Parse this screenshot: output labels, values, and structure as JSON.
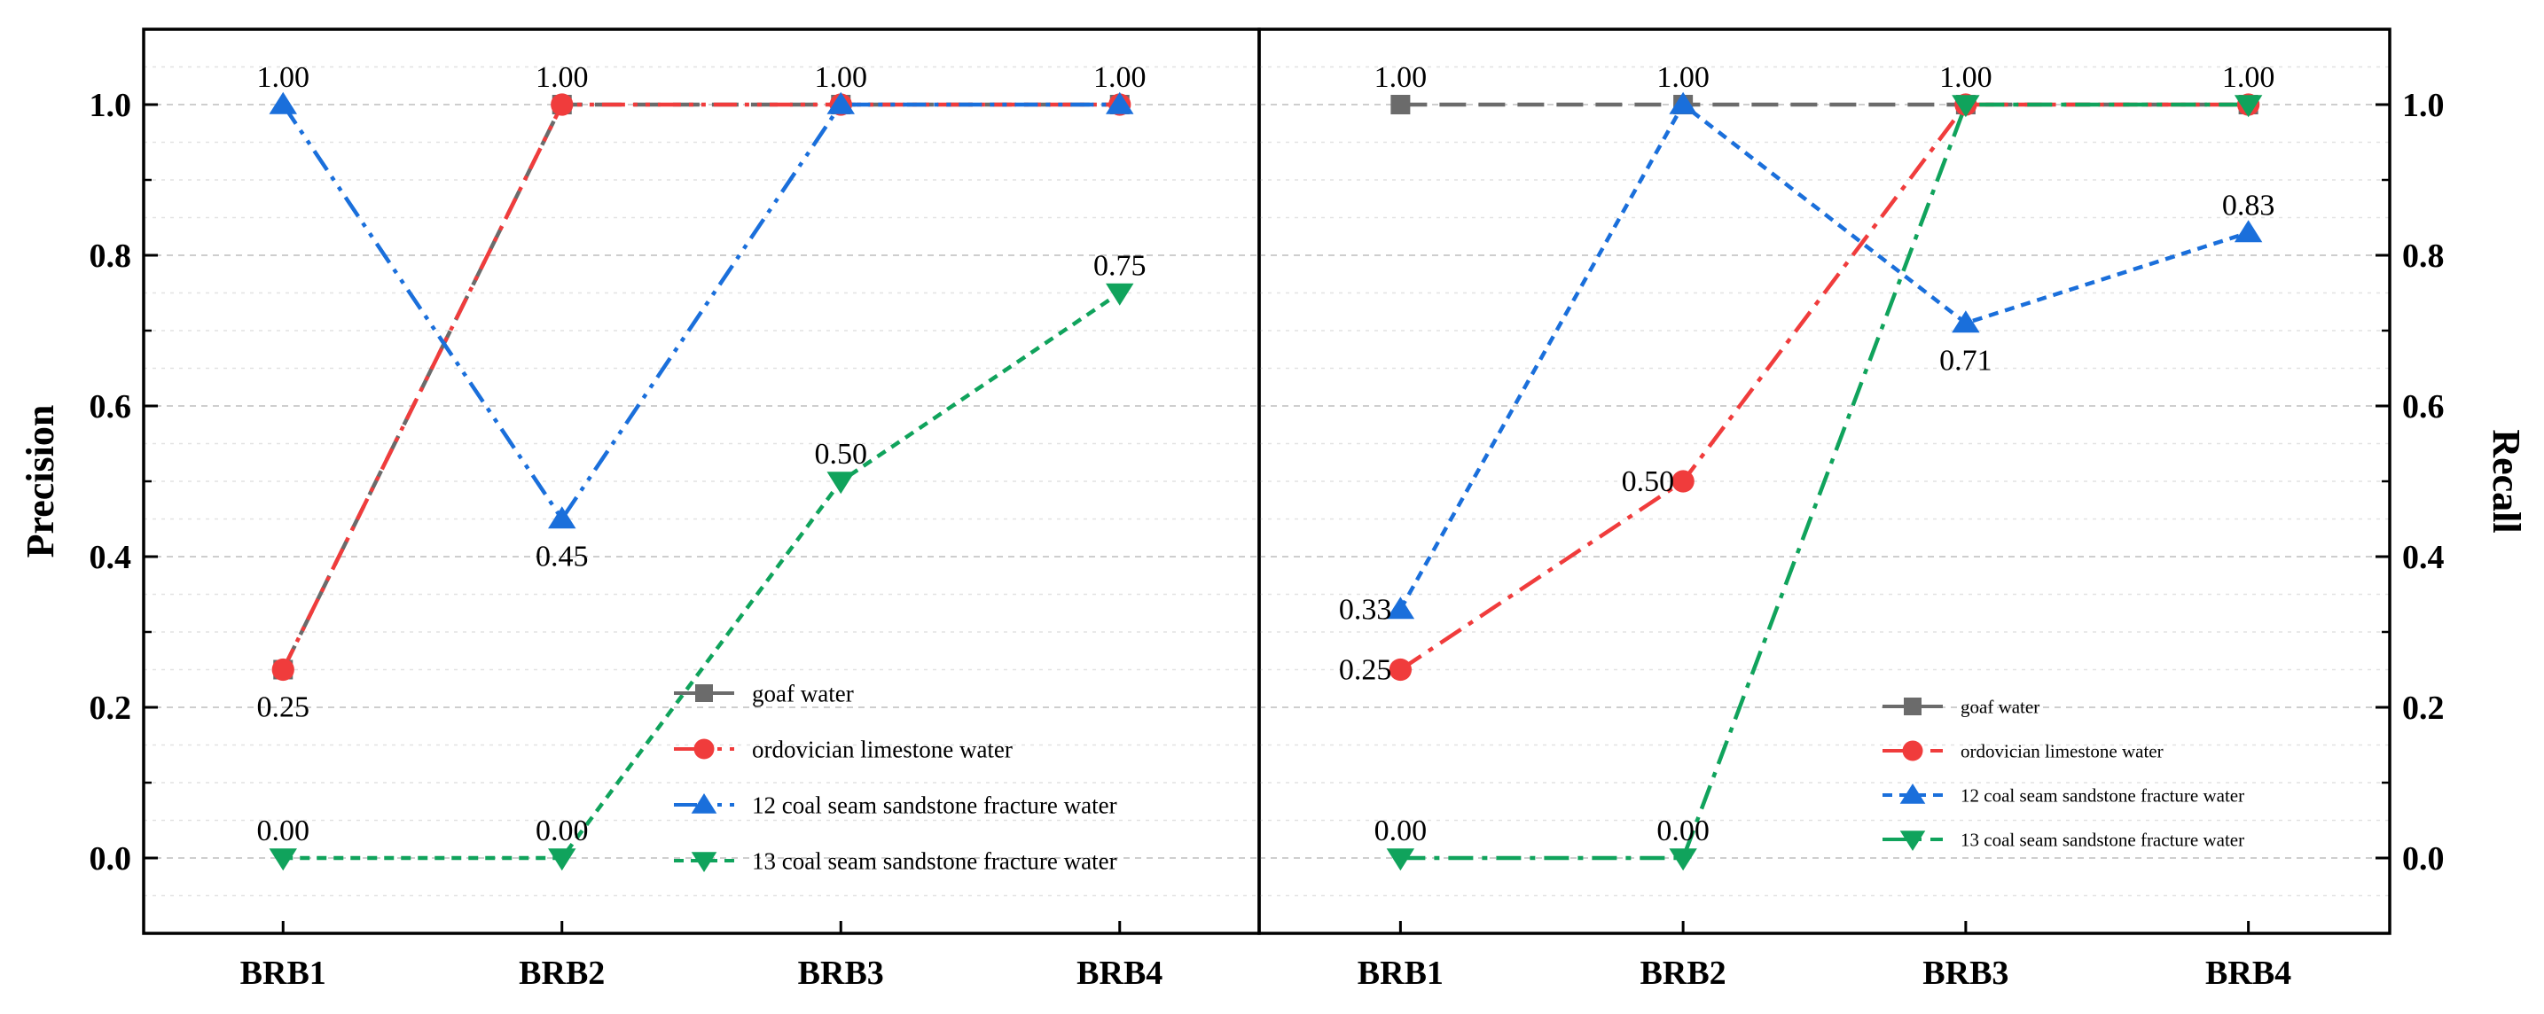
{
  "chart_data": [
    {
      "type": "line",
      "panel": "left",
      "ylabel": "Precision",
      "ylabel_side": "left",
      "categories": [
        "BRB1",
        "BRB2",
        "BRB3",
        "BRB4"
      ],
      "ylim": [
        -0.1,
        1.1
      ],
      "yticks": [
        "0.0",
        "0.2",
        "0.4",
        "0.6",
        "0.8",
        "1.0"
      ],
      "grid": true,
      "legend_position": "bottom-right",
      "series": [
        {
          "name": "goaf water",
          "values": [
            0.25,
            1.0,
            1.0,
            1.0
          ],
          "color": "#6b6b6b",
          "marker": "square",
          "dash": "dashed"
        },
        {
          "name": "ordovician limestone water",
          "values": [
            0.25,
            1.0,
            1.0,
            1.0
          ],
          "color": "#f03c3c",
          "marker": "circle",
          "dash": "dash-dot-dot"
        },
        {
          "name": "12 coal seam sandstone fracture water",
          "values": [
            1.0,
            0.45,
            1.0,
            1.0
          ],
          "color": "#1a6fdb",
          "marker": "triangle-up",
          "dash": "dash-dot-dot"
        },
        {
          "name": "13 coal seam sandstone fracture water",
          "values": [
            0.0,
            0.0,
            0.5,
            0.75
          ],
          "color": "#10a35c",
          "marker": "triangle-down",
          "dash": "short-dash"
        }
      ],
      "annotations": [
        {
          "text": "1.00",
          "cat": 0,
          "value": 1.0,
          "pos": "above"
        },
        {
          "text": "1.00",
          "cat": 1,
          "value": 1.0,
          "pos": "above"
        },
        {
          "text": "1.00",
          "cat": 2,
          "value": 1.0,
          "pos": "above"
        },
        {
          "text": "1.00",
          "cat": 3,
          "value": 1.0,
          "pos": "above"
        },
        {
          "text": "0.25",
          "cat": 0,
          "value": 0.25,
          "pos": "below"
        },
        {
          "text": "0.45",
          "cat": 1,
          "value": 0.45,
          "pos": "below"
        },
        {
          "text": "0.50",
          "cat": 2,
          "value": 0.5,
          "pos": "above"
        },
        {
          "text": "0.75",
          "cat": 3,
          "value": 0.75,
          "pos": "above"
        },
        {
          "text": "0.00",
          "cat": 0,
          "value": 0.0,
          "pos": "above"
        },
        {
          "text": "0.00",
          "cat": 1,
          "value": 0.0,
          "pos": "above"
        }
      ]
    },
    {
      "type": "line",
      "panel": "right",
      "ylabel": "Recall",
      "ylabel_side": "right",
      "categories": [
        "BRB1",
        "BRB2",
        "BRB3",
        "BRB4"
      ],
      "ylim": [
        -0.1,
        1.1
      ],
      "yticks": [
        "0.0",
        "0.2",
        "0.4",
        "0.6",
        "0.8",
        "1.0"
      ],
      "grid": true,
      "legend_position": "bottom-right",
      "series": [
        {
          "name": "goaf water",
          "values": [
            1.0,
            1.0,
            1.0,
            1.0
          ],
          "color": "#6b6b6b",
          "marker": "square",
          "dash": "dashed"
        },
        {
          "name": "ordovician limestone water",
          "values": [
            0.25,
            0.5,
            1.0,
            1.0
          ],
          "color": "#f03c3c",
          "marker": "circle",
          "dash": "dash-dot"
        },
        {
          "name": "12 coal seam sandstone fracture water",
          "values": [
            0.33,
            1.0,
            0.71,
            0.83
          ],
          "color": "#1a6fdb",
          "marker": "triangle-up",
          "dash": "short-dash"
        },
        {
          "name": "13 coal seam sandstone fracture water",
          "values": [
            0.0,
            0.0,
            1.0,
            1.0
          ],
          "color": "#10a35c",
          "marker": "triangle-down",
          "dash": "dash-dot"
        }
      ],
      "annotations": [
        {
          "text": "1.00",
          "cat": 0,
          "value": 1.0,
          "pos": "above"
        },
        {
          "text": "1.00",
          "cat": 1,
          "value": 1.0,
          "pos": "above"
        },
        {
          "text": "1.00",
          "cat": 2,
          "value": 1.0,
          "pos": "above"
        },
        {
          "text": "1.00",
          "cat": 3,
          "value": 1.0,
          "pos": "above"
        },
        {
          "text": "0.33",
          "cat": 0,
          "value": 0.33,
          "pos": "left"
        },
        {
          "text": "0.25",
          "cat": 0,
          "value": 0.25,
          "pos": "left"
        },
        {
          "text": "0.50",
          "cat": 1,
          "value": 0.5,
          "pos": "left"
        },
        {
          "text": "0.71",
          "cat": 2,
          "value": 0.71,
          "pos": "below"
        },
        {
          "text": "0.83",
          "cat": 3,
          "value": 0.83,
          "pos": "above"
        },
        {
          "text": "0.00",
          "cat": 0,
          "value": 0.0,
          "pos": "above"
        },
        {
          "text": "0.00",
          "cat": 1,
          "value": 0.0,
          "pos": "above"
        }
      ]
    }
  ]
}
